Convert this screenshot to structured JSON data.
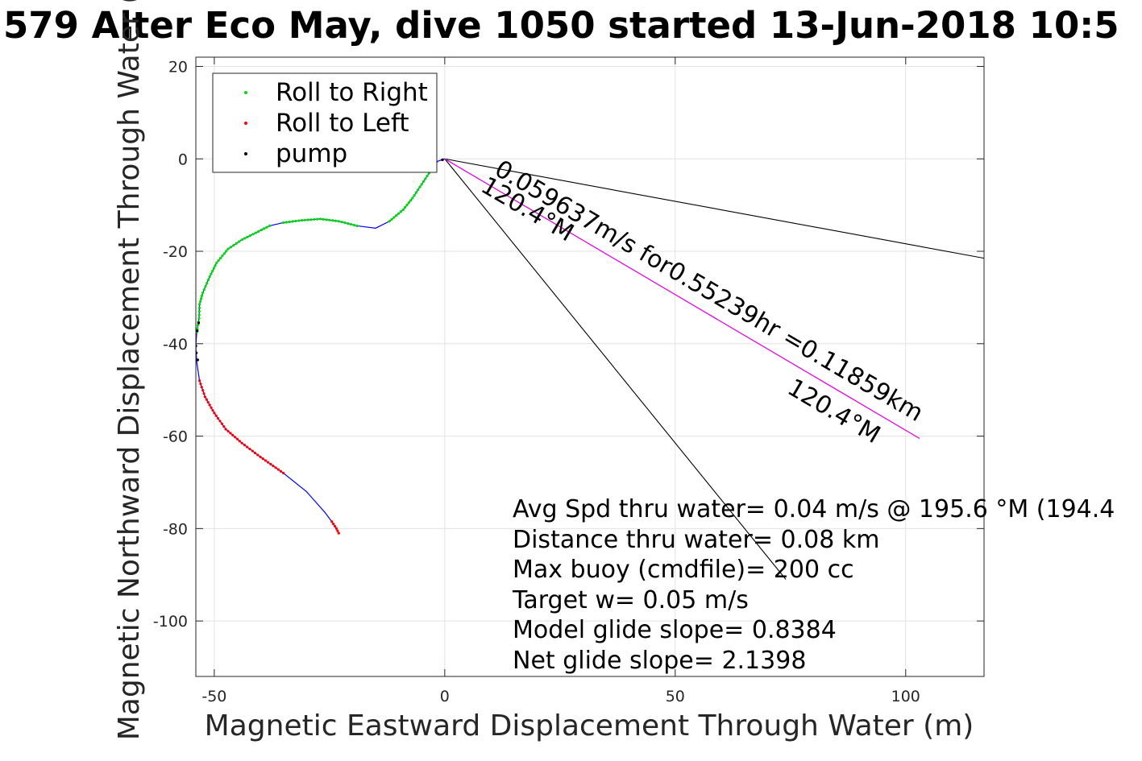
{
  "chart_data": {
    "type": "scatter",
    "title": "579 Alter Eco May, dive 1050 started 13-Jun-2018 10:5",
    "xlabel": "Magnetic Eastward Displacement Through Water (m)",
    "ylabel": "Magnetic Northward Displacement Through Water (",
    "xlim": [
      -54,
      117
    ],
    "ylim": [
      -112,
      22
    ],
    "xticks": [
      -50,
      0,
      50,
      100
    ],
    "yticks": [
      20,
      0,
      -20,
      -40,
      -60,
      -80,
      -100
    ],
    "grid": true,
    "legend_position": "top-left",
    "legend": [
      {
        "label": "Roll to Right",
        "color": "#00dd00"
      },
      {
        "label": "Roll to Left",
        "color": "#ff0000"
      },
      {
        "label": "pump",
        "color": "#000000"
      }
    ],
    "track_color": "#0000ff",
    "track": [
      [
        0,
        0
      ],
      [
        -1.5,
        -0.5
      ],
      [
        -3,
        -2.5
      ],
      [
        -5,
        -5.5
      ],
      [
        -7,
        -8.5
      ],
      [
        -9,
        -11
      ],
      [
        -12,
        -13.5
      ],
      [
        -15,
        -15
      ],
      [
        -19,
        -14.5
      ],
      [
        -23,
        -13.5
      ],
      [
        -27,
        -13
      ],
      [
        -31,
        -13.3
      ],
      [
        -35,
        -13.8
      ],
      [
        -38,
        -14.5
      ],
      [
        -41,
        -16
      ],
      [
        -44,
        -17.5
      ],
      [
        -47,
        -19.5
      ],
      [
        -49.5,
        -22.5
      ],
      [
        -51,
        -25.5
      ],
      [
        -52.5,
        -29
      ],
      [
        -53.2,
        -31.5
      ],
      [
        -53.3,
        -34.5
      ],
      [
        -53.8,
        -37.5
      ],
      [
        -54.0,
        -40.5
      ],
      [
        -53.8,
        -44
      ],
      [
        -53.2,
        -48
      ],
      [
        -52,
        -51.5
      ],
      [
        -50,
        -55
      ],
      [
        -47.5,
        -58.5
      ],
      [
        -44,
        -61.5
      ],
      [
        -40,
        -64.5
      ],
      [
        -35,
        -68
      ],
      [
        -30,
        -72
      ],
      [
        -26,
        -76.5
      ],
      [
        -24.5,
        -78.5
      ],
      [
        -23.5,
        -80
      ],
      [
        -23,
        -81
      ]
    ],
    "series": [
      {
        "name": "Roll to Right",
        "color": "#00dd00",
        "segments": [
          [
            2,
            6
          ],
          [
            8,
            12
          ],
          [
            13,
            22
          ]
        ]
      },
      {
        "name": "Roll to Left",
        "color": "#ff0000",
        "segments": [
          [
            25,
            31
          ],
          [
            34,
            36
          ]
        ]
      },
      {
        "name": "pump",
        "color": "#000000",
        "points": [
          [
            -53.4,
            -35.5
          ],
          [
            -53.7,
            -37.2
          ],
          [
            -54.0,
            -40.5
          ],
          [
            -53.9,
            -42
          ],
          [
            -53.6,
            -43.5
          ],
          [
            -0.5,
            -0.2
          ]
        ]
      }
    ],
    "lines": [
      {
        "x": [
          0,
          117
        ],
        "y": [
          0,
          -21.5
        ],
        "color": "#000000"
      },
      {
        "x": [
          0,
          74
        ],
        "y": [
          0,
          -91
        ],
        "color": "#000000"
      },
      {
        "x": [
          0,
          103
        ],
        "y": [
          0,
          -60.5
        ],
        "color": "#000000"
      },
      {
        "x": [
          0,
          103
        ],
        "y": [
          0,
          -60.5
        ],
        "color": "#ff00ff"
      }
    ],
    "annotations": [
      {
        "text": "0.059637m/s for0.55239hr =0.11859km",
        "x": 10.5,
        "y": -3.2,
        "angle": 30.4
      },
      {
        "text": "120.4°M",
        "x": 7.5,
        "y": -6.8,
        "angle": 30.4
      },
      {
        "text": "120.4°M",
        "x": 74,
        "y": -50.5,
        "angle": 30.4
      }
    ],
    "stats": [
      "Avg Spd thru water=  0.04 m/s @ 195.6 °M (194.4",
      "Distance thru water=  0.08 km",
      "Max buoy (cmdfile)= 200 cc",
      "Target w= 0.05 m/s",
      "Model glide slope= 0.8384",
      "Net glide slope= 2.1398"
    ]
  }
}
